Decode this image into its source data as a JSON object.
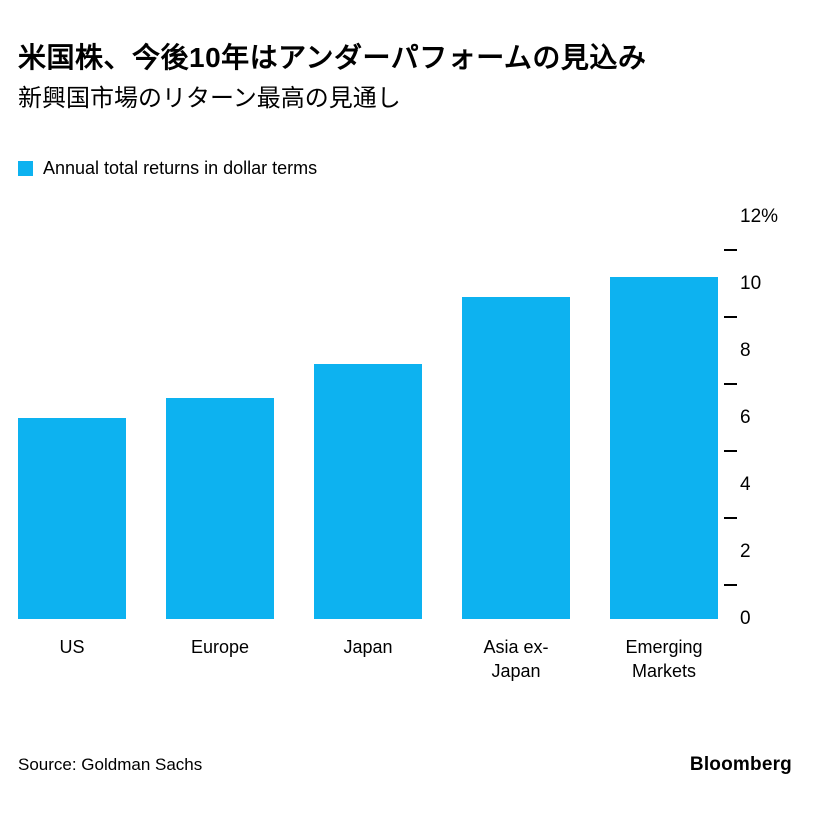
{
  "header": {
    "title": "米国株、今後10年はアンダーパフォームの見込み",
    "subtitle": "新興国市場のリターン最高の見通し"
  },
  "legend": {
    "label": "Annual total returns in dollar terms"
  },
  "chart_data": {
    "type": "bar",
    "title": "米国株、今後10年はアンダーパフォームの見込み",
    "subtitle": "新興国市場のリターン最高の見通し",
    "series_name": "Annual total returns in dollar terms",
    "categories": [
      "US",
      "Europe",
      "Japan",
      "Asia ex-Japan",
      "Emerging Markets"
    ],
    "category_display": [
      "US",
      "Europe",
      "Japan",
      "Asia ex-Japan",
      "Emerging\nMarkets"
    ],
    "values": [
      6.0,
      6.6,
      7.6,
      9.6,
      10.2
    ],
    "unit": "%",
    "xlabel": "",
    "ylabel": "",
    "ylim": [
      0,
      12
    ],
    "ytick_values": [
      0,
      2,
      4,
      6,
      8,
      10,
      12
    ],
    "ytick_labels": [
      "0",
      "2",
      "4",
      "6",
      "8",
      "10",
      "12%"
    ],
    "ytick_minor": [
      1,
      3,
      5,
      7,
      9,
      11
    ],
    "axis_side": "right",
    "grid": false,
    "legend_position": "top-left",
    "bar_color": "#0db2f0"
  },
  "footer": {
    "source": "Source: Goldman Sachs",
    "brand": "Bloomberg"
  }
}
